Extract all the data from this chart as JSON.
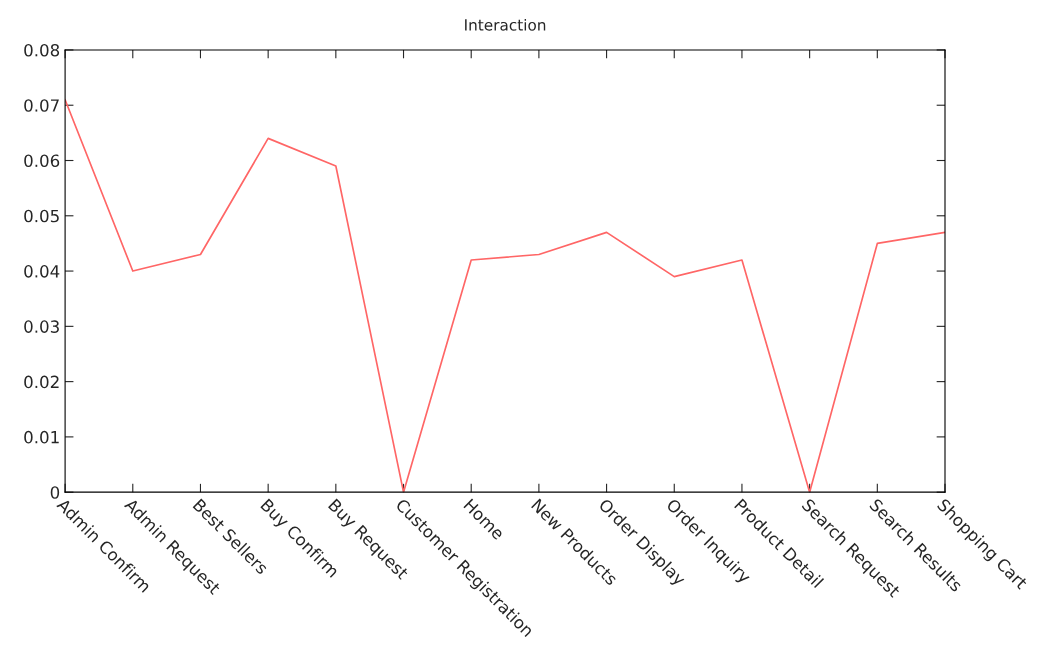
{
  "chart_data": {
    "type": "line",
    "title": "Interaction",
    "categories": [
      "Admin Confirm",
      "Admin Request",
      "Best Sellers",
      "Buy Confirm",
      "Buy Request",
      "Customer Registration",
      "Home",
      "New Products",
      "Order Display",
      "Order Inquiry",
      "Product Detail",
      "Search Request",
      "Search Results",
      "Shopping Cart"
    ],
    "series": [
      {
        "color": "#ff6666",
        "values": [
          0.071,
          0.04,
          0.043,
          0.064,
          0.059,
          0,
          0.042,
          0.043,
          0.047,
          0.039,
          0.042,
          0,
          0.045,
          0.047
        ]
      }
    ],
    "ylim": [
      0,
      0.08
    ],
    "yticks": [
      0,
      0.01,
      0.02,
      0.03,
      0.04,
      0.05,
      0.06,
      0.07,
      0.08
    ],
    "grid": false,
    "marker": "none",
    "line_style": "solid"
  }
}
